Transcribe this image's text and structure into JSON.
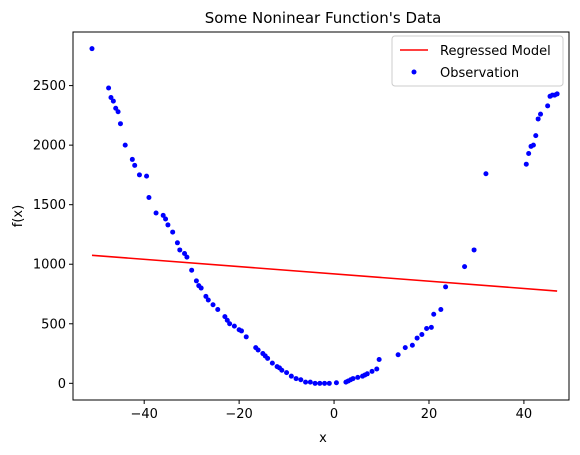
{
  "chart_data": {
    "type": "scatter",
    "title": "Some Noninear Function's Data",
    "xlabel": "x",
    "ylabel": "f(x)",
    "xlim": [
      -55,
      49.5
    ],
    "ylim": [
      -140,
      2950
    ],
    "xticks": [
      -40,
      -20,
      0,
      20,
      40
    ],
    "yticks": [
      0,
      500,
      1000,
      1500,
      2000,
      2500
    ],
    "grid": false,
    "legend": {
      "placement": "top-right",
      "entries": [
        "Regressed Model",
        "Observation"
      ]
    },
    "series": [
      {
        "name": "Regressed Model",
        "type": "line",
        "color": "#ff0000",
        "x": [
          -51,
          47
        ],
        "y": [
          1075,
          775
        ]
      },
      {
        "name": "Observation",
        "type": "scatter",
        "color": "#0000ff",
        "x": [
          -51,
          -47.5,
          -47,
          -46.5,
          -46,
          -45.5,
          -45,
          -44,
          -42.5,
          -42,
          -41,
          -39.5,
          -39,
          -37.5,
          -36,
          -35.5,
          -35,
          -34,
          -33,
          -32.5,
          -31.5,
          -31,
          -30,
          -29,
          -28.5,
          -28,
          -27,
          -26.5,
          -25.5,
          -24.5,
          -23,
          -22.5,
          -22,
          -21,
          -20,
          -19.5,
          -18.5,
          -16.5,
          -16,
          -15,
          -14.5,
          -14,
          -13,
          -12,
          -11.5,
          -11,
          -10,
          -9,
          -8,
          -7,
          -6,
          -5,
          -4,
          -3,
          -2,
          -1,
          0.5,
          2.5,
          3,
          3.5,
          4,
          5,
          6,
          6.5,
          7,
          8,
          9,
          9.5,
          13.5,
          15,
          16.5,
          17.5,
          18.5,
          19.5,
          20.5,
          21,
          22.5,
          23.5,
          27.5,
          29.5,
          32,
          40.5,
          41,
          41.5,
          42,
          42.5,
          43,
          43.5,
          45,
          45.5,
          46,
          46.5,
          47
        ],
        "y": [
          2810,
          2480,
          2400,
          2370,
          2310,
          2280,
          2180,
          2000,
          1880,
          1830,
          1750,
          1740,
          1560,
          1430,
          1410,
          1380,
          1330,
          1270,
          1180,
          1120,
          1090,
          1060,
          950,
          860,
          820,
          800,
          730,
          700,
          660,
          620,
          560,
          530,
          500,
          480,
          450,
          440,
          390,
          300,
          280,
          250,
          230,
          210,
          170,
          140,
          130,
          110,
          90,
          60,
          40,
          30,
          10,
          10,
          0,
          0,
          0,
          0,
          5,
          10,
          20,
          30,
          40,
          50,
          60,
          70,
          80,
          100,
          120,
          200,
          240,
          300,
          320,
          380,
          410,
          460,
          470,
          580,
          620,
          810,
          980,
          1120,
          1760,
          1840,
          1930,
          1990,
          2000,
          2080,
          2220,
          2260,
          2330,
          2410,
          2420,
          2420,
          2430
        ]
      }
    ]
  }
}
